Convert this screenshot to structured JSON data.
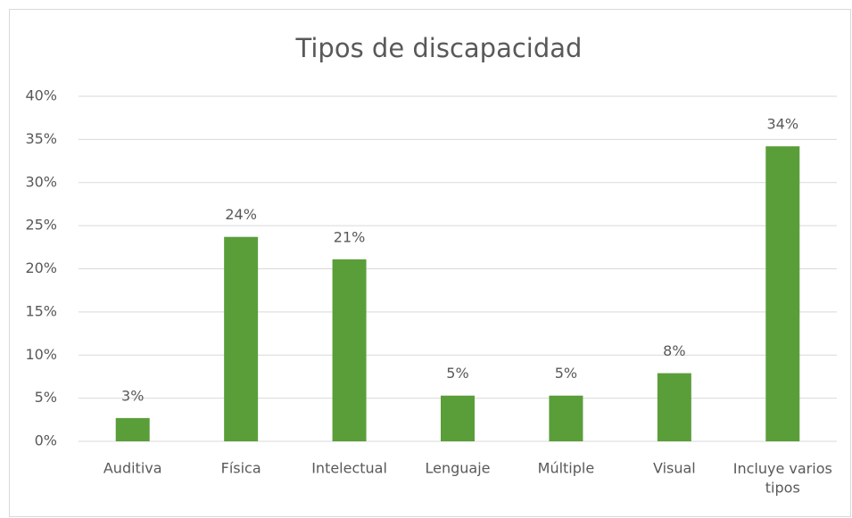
{
  "chart_data": {
    "type": "bar",
    "title": "Tipos de discapacidad",
    "categories": [
      "Auditiva",
      "Física",
      "Intelectual",
      "Lenguaje",
      "Múltiple",
      "Visual",
      "Incluye varios tipos"
    ],
    "values": [
      2.7,
      23.7,
      21.1,
      5.3,
      5.3,
      7.9,
      34.2
    ],
    "value_labels": [
      "3%",
      "24%",
      "21%",
      "5%",
      "5%",
      "8%",
      "34%"
    ],
    "color": "#5a9e3a",
    "ylim": [
      0,
      40
    ],
    "yticks": [
      {
        "value": 0,
        "label": "0%"
      },
      {
        "value": 5,
        "label": "5%"
      },
      {
        "value": 10,
        "label": "10%"
      },
      {
        "value": 15,
        "label": "15%"
      },
      {
        "value": 20,
        "label": "20%"
      },
      {
        "value": 25,
        "label": "25%"
      },
      {
        "value": 30,
        "label": "30%"
      },
      {
        "value": 35,
        "label": "35%"
      },
      {
        "value": 40,
        "label": "40%"
      }
    ],
    "grid": true
  }
}
